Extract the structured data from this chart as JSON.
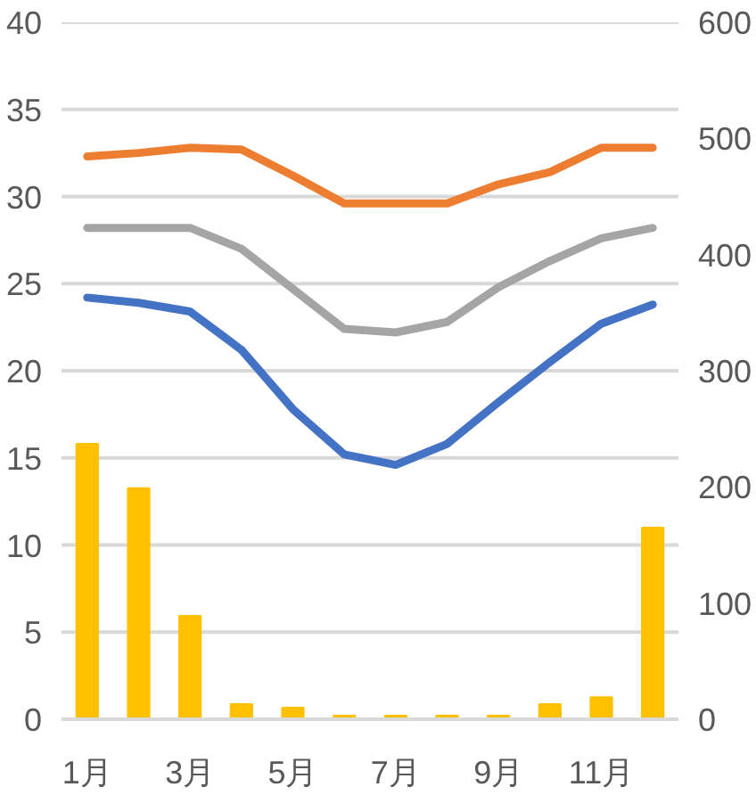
{
  "chart_data": {
    "type": "line",
    "categories": [
      "1月",
      null,
      "3月",
      null,
      "5月",
      null,
      "7月",
      null,
      "9月",
      null,
      "11月",
      null
    ],
    "series": [
      {
        "type": "bar",
        "axis": "y2",
        "color": "#ffc000",
        "values": [
          237,
          199,
          89,
          13,
          10,
          3,
          3,
          3,
          3,
          13,
          19,
          165
        ]
      },
      {
        "color": "#ed7d31",
        "values": [
          32.3,
          32.5,
          32.8,
          32.7,
          31.2,
          29.6,
          29.6,
          29.6,
          30.7,
          31.4,
          32.8,
          32.8
        ]
      },
      {
        "color": "#a5a5a5",
        "values": [
          28.2,
          28.2,
          28.2,
          27.0,
          24.7,
          22.4,
          22.2,
          22.8,
          24.8,
          26.3,
          27.6,
          28.2
        ]
      },
      {
        "color": "#4472c4",
        "values": [
          24.2,
          23.9,
          23.4,
          21.2,
          17.8,
          15.2,
          14.6,
          15.8,
          18.2,
          20.5,
          22.7,
          23.8
        ]
      }
    ],
    "ylim": [
      0,
      40
    ],
    "yticks": [
      0,
      5,
      10,
      15,
      20,
      25,
      30,
      35,
      40
    ],
    "y2lim": [
      0,
      600
    ],
    "y2ticks": [
      0,
      100,
      200,
      300,
      400,
      500,
      600
    ],
    "grid": "y",
    "marker": "none",
    "line_style": "solid"
  }
}
